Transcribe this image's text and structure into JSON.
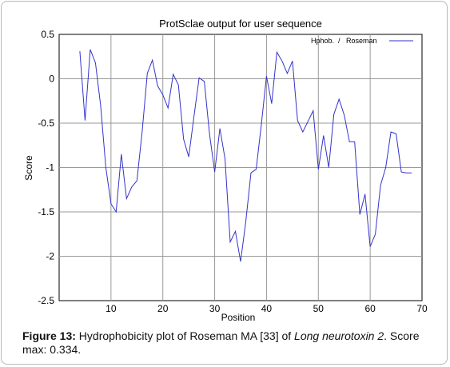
{
  "chart_data": {
    "type": "line",
    "title": "ProtSclae output for user sequence",
    "xlabel": "Position",
    "ylabel": "Score",
    "xlim": [
      0,
      70
    ],
    "ylim": [
      -2.5,
      0.5
    ],
    "xticks": [
      "10",
      "20",
      "30",
      "40",
      "50",
      "60",
      "70"
    ],
    "yticks": [
      "0.5",
      "0",
      "-0.5",
      "-1",
      "-1.5",
      "-2",
      "-2.5"
    ],
    "grid": true,
    "legend_position": "top-right",
    "legend_label": "Hphob.  /   Roseman",
    "series": [
      {
        "name": "Hphob.  /   Roseman",
        "color": "#3333cc",
        "x": [
          4,
          5,
          6,
          7,
          8,
          9,
          10,
          11,
          12,
          13,
          14,
          15,
          16,
          17,
          18,
          19,
          20,
          21,
          22,
          23,
          24,
          25,
          26,
          27,
          28,
          29,
          30,
          31,
          32,
          33,
          34,
          35,
          36,
          37,
          38,
          39,
          40,
          41,
          42,
          43,
          44,
          45,
          46,
          47,
          48,
          49,
          50,
          51,
          52,
          53,
          54,
          55,
          56,
          57,
          58,
          59,
          60,
          61,
          62,
          63,
          64,
          65,
          66,
          67,
          68
        ],
        "values": [
          0.31,
          -0.47,
          0.33,
          0.18,
          -0.3,
          -1.0,
          -1.41,
          -1.5,
          -0.85,
          -1.35,
          -1.22,
          -1.15,
          -0.6,
          0.06,
          0.21,
          -0.08,
          -0.18,
          -0.33,
          0.05,
          -0.07,
          -0.68,
          -0.88,
          -0.43,
          0.01,
          -0.03,
          -0.62,
          -1.05,
          -0.56,
          -0.9,
          -1.84,
          -1.72,
          -2.06,
          -1.61,
          -1.06,
          -1.02,
          -0.52,
          0.03,
          -0.28,
          0.3,
          0.2,
          0.06,
          0.2,
          -0.47,
          -0.6,
          -0.48,
          -0.36,
          -1.02,
          -0.64,
          -1.0,
          -0.4,
          -0.23,
          -0.41,
          -0.71,
          -0.71,
          -1.53,
          -1.3,
          -1.89,
          -1.75,
          -1.2,
          -1.0,
          -0.6,
          -0.62,
          -1.05,
          -1.06,
          -1.06
        ]
      }
    ]
  },
  "caption": {
    "label": "Figure 13:",
    "text_before": " Hydrophobicity plot of Roseman MA [33] of ",
    "italic": "Long neurotoxin 2",
    "text_after": ". Score max: 0.334."
  }
}
